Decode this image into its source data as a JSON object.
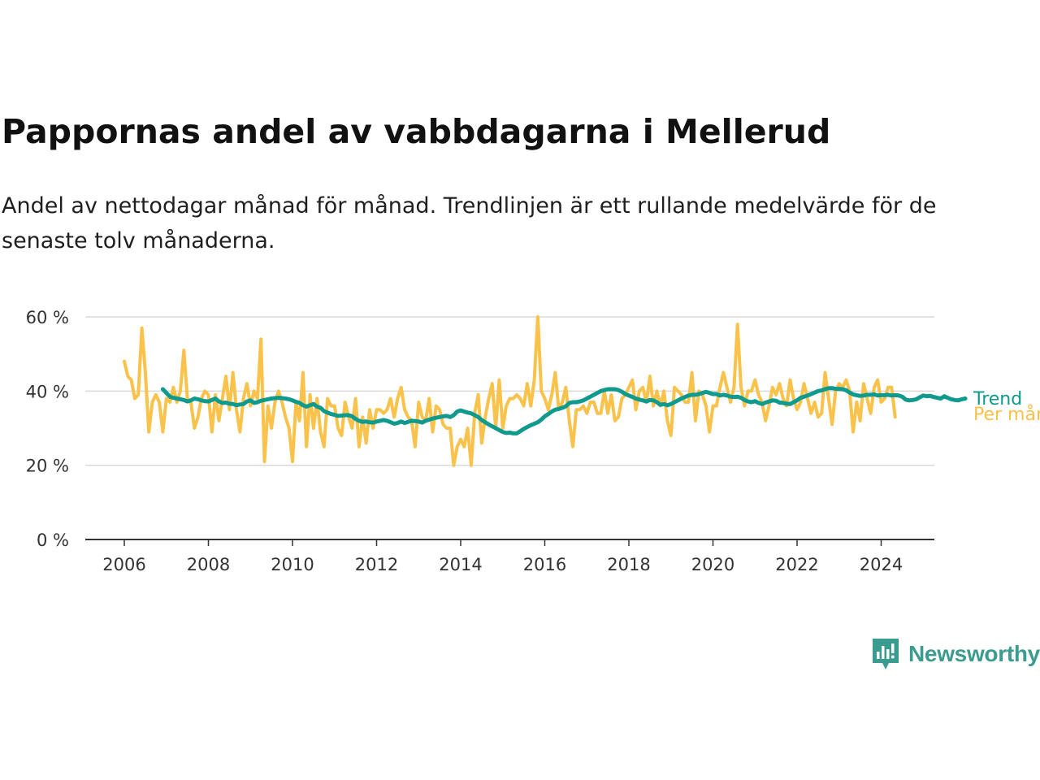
{
  "title": "Pappornas andel av vabbdagarna i Mellerud",
  "subtitle": "Andel av nettodagar månad för månad. Trendlinjen är ett rullande medelvärde för de senaste tolv månaderna.",
  "brand": "Newsworthy",
  "colors": {
    "trend": "#0f9a8d",
    "monthly": "#f9c24b",
    "grid": "#d9d9d9",
    "axis": "#333333",
    "brand": "#3a9b8f"
  },
  "chart_data": {
    "type": "line",
    "title": "Pappornas andel av vabbdagarna i Mellerud",
    "xlim": [
      2006,
      2024.4
    ],
    "ylim": [
      0,
      60
    ],
    "x_ticks": [
      "2006",
      "2008",
      "2010",
      "2012",
      "2014",
      "2016",
      "2018",
      "2020",
      "2022",
      "2024"
    ],
    "y_ticks": [
      "0 %",
      "20 %",
      "40 %",
      "60 %"
    ],
    "grid": true,
    "legend": "inline labels at right end of lines",
    "series": [
      {
        "name": "Per månad",
        "x_start": "2006-01",
        "step": "month",
        "values": [
          48,
          44,
          43,
          38,
          39,
          57,
          45,
          29,
          37,
          39,
          37,
          29,
          38,
          37,
          41,
          37,
          40,
          51,
          38,
          37,
          30,
          33,
          38,
          40,
          39,
          29,
          39,
          32,
          38,
          44,
          35,
          45,
          35,
          29,
          38,
          42,
          36,
          40,
          38,
          54,
          21,
          36,
          30,
          37,
          40,
          37,
          33,
          30,
          21,
          37,
          32,
          45,
          25,
          39,
          30,
          38,
          29,
          25,
          38,
          36,
          36,
          30,
          28,
          37,
          33,
          30,
          38,
          25,
          33,
          26,
          35,
          30,
          35,
          35,
          34,
          35,
          38,
          33,
          38,
          41,
          35,
          33,
          32,
          25,
          37,
          33,
          32,
          38,
          29,
          36,
          35,
          31,
          30,
          30,
          20,
          25,
          27,
          25,
          30,
          20,
          34,
          39,
          26,
          33,
          38,
          42,
          30,
          43,
          30,
          36,
          38,
          38,
          39,
          38,
          36,
          42,
          36,
          43,
          60,
          40,
          38,
          35,
          39,
          45,
          35,
          37,
          41,
          32,
          25,
          35,
          35,
          36,
          34,
          37,
          37,
          34,
          34,
          40,
          34,
          39,
          32,
          33,
          38,
          39,
          41,
          43,
          35,
          40,
          41,
          37,
          44,
          36,
          40,
          36,
          40,
          32,
          28,
          41,
          40,
          39,
          37,
          37,
          45,
          32,
          40,
          39,
          36,
          29,
          36,
          36,
          41,
          45,
          41,
          37,
          41,
          58,
          41,
          36,
          40,
          40,
          43,
          39,
          37,
          32,
          36,
          41,
          39,
          42,
          38,
          36,
          43,
          38,
          35,
          37,
          42,
          38,
          34,
          37,
          33,
          34,
          45,
          38,
          31,
          40,
          42,
          41,
          43,
          40,
          29,
          37,
          32,
          42,
          38,
          34,
          41,
          43,
          37,
          38,
          41,
          41,
          33
        ]
      },
      {
        "name": "Trend",
        "x_start": "2006-12",
        "step": "month",
        "values": [
          40.5,
          39.5,
          38.5,
          38.2,
          38.0,
          37.8,
          37.6,
          37.2,
          37.5,
          38.0,
          37.8,
          37.5,
          37.3,
          37.2,
          37.6,
          38.0,
          37.2,
          36.8,
          36.9,
          36.6,
          36.5,
          36.2,
          36.4,
          36.5,
          37.2,
          37.5,
          36.8,
          37.0,
          37.4,
          37.6,
          37.8,
          38.0,
          38.1,
          38.2,
          38.1,
          38.0,
          37.8,
          37.5,
          37.1,
          36.8,
          36.2,
          35.8,
          36.2,
          36.5,
          35.8,
          35.5,
          34.6,
          34.2,
          33.8,
          33.6,
          33.3,
          33.4,
          33.5,
          33.5,
          33.2,
          32.5,
          32.0,
          31.7,
          31.8,
          31.6,
          31.5,
          31.8,
          32.0,
          32.2,
          32.0,
          31.6,
          31.2,
          31.4,
          31.8,
          31.4,
          31.7,
          32.0,
          31.9,
          31.8,
          31.5,
          32.0,
          32.3,
          32.6,
          32.8,
          33.0,
          33.2,
          33.3,
          33.0,
          33.5,
          34.5,
          34.8,
          34.5,
          34.2,
          34.0,
          33.5,
          33.0,
          32.2,
          31.6,
          31.0,
          30.5,
          30.0,
          29.5,
          29.0,
          28.7,
          28.8,
          28.6,
          28.6,
          29.2,
          29.8,
          30.3,
          30.8,
          31.2,
          31.6,
          32.3,
          33.2,
          33.8,
          34.5,
          35.0,
          35.2,
          35.5,
          35.9,
          36.8,
          37.0,
          37.0,
          37.2,
          37.5,
          38.0,
          38.5,
          39.0,
          39.5,
          40.0,
          40.3,
          40.5,
          40.5,
          40.5,
          40.3,
          39.8,
          39.2,
          38.8,
          38.4,
          38.0,
          37.7,
          37.5,
          37.2,
          37.6,
          37.5,
          37.0,
          36.3,
          36.5,
          36.2,
          36.5,
          37.0,
          37.5,
          38.0,
          38.4,
          38.8,
          39.0,
          39.0,
          39.2,
          39.5,
          39.8,
          39.5,
          39.2,
          39.2,
          38.8,
          39.0,
          38.8,
          38.5,
          38.4,
          38.5,
          38.2,
          37.6,
          37.2,
          37.0,
          37.3,
          36.8,
          36.5,
          36.9,
          37.2,
          37.5,
          37.4,
          36.9,
          36.8,
          36.6,
          36.5,
          37.0,
          37.5,
          38.2,
          38.5,
          38.8,
          39.2,
          39.6,
          40.0,
          40.2,
          40.5,
          40.8,
          40.8,
          40.6,
          40.6,
          40.5,
          40.2,
          39.6,
          39.1,
          38.9,
          38.7,
          38.8,
          39.0,
          39.0,
          39.1,
          38.8,
          38.9,
          38.9,
          39.0,
          38.8,
          38.9,
          38.8,
          38.5,
          37.7,
          37.5,
          37.6,
          37.8,
          38.3,
          38.8,
          38.6,
          38.7,
          38.4,
          38.2,
          38.0,
          38.6,
          38.2,
          37.8,
          37.6,
          37.5,
          37.8,
          38.0
        ]
      }
    ]
  }
}
